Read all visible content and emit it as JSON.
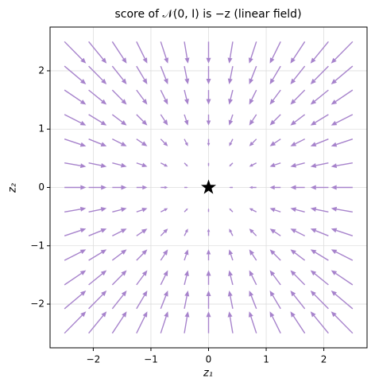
{
  "chart_data": {
    "type": "quiver",
    "title": "score of 𝒩(0, I) is −z (linear field)",
    "x_label": "z₁",
    "y_label": "z₂",
    "color": "#a783cc",
    "grid": true,
    "x": [
      -2.5,
      -2.08,
      -1.67,
      -1.25,
      -0.83,
      -0.42,
      0,
      0.42,
      0.83,
      1.25,
      1.67,
      2.08,
      2.5
    ],
    "y": [
      -2.5,
      -2.08,
      -1.67,
      -1.25,
      -0.83,
      -0.42,
      0,
      0.42,
      0.83,
      1.25,
      1.67,
      2.08,
      2.5
    ],
    "u": [
      [
        2.5,
        2.08,
        1.67,
        1.25,
        0.83,
        0.42,
        0,
        -0.42,
        -0.83,
        -1.25,
        -1.67,
        -2.08,
        -2.5
      ],
      [
        2.5,
        2.08,
        1.67,
        1.25,
        0.83,
        0.42,
        0,
        -0.42,
        -0.83,
        -1.25,
        -1.67,
        -2.08,
        -2.5
      ],
      [
        2.5,
        2.08,
        1.67,
        1.25,
        0.83,
        0.42,
        0,
        -0.42,
        -0.83,
        -1.25,
        -1.67,
        -2.08,
        -2.5
      ],
      [
        2.5,
        2.08,
        1.67,
        1.25,
        0.83,
        0.42,
        0,
        -0.42,
        -0.83,
        -1.25,
        -1.67,
        -2.08,
        -2.5
      ],
      [
        2.5,
        2.08,
        1.67,
        1.25,
        0.83,
        0.42,
        0,
        -0.42,
        -0.83,
        -1.25,
        -1.67,
        -2.08,
        -2.5
      ],
      [
        2.5,
        2.08,
        1.67,
        1.25,
        0.83,
        0.42,
        0,
        -0.42,
        -0.83,
        -1.25,
        -1.67,
        -2.08,
        -2.5
      ],
      [
        2.5,
        2.08,
        1.67,
        1.25,
        0.83,
        0.42,
        0,
        -0.42,
        -0.83,
        -1.25,
        -1.67,
        -2.08,
        -2.5
      ],
      [
        2.5,
        2.08,
        1.67,
        1.25,
        0.83,
        0.42,
        0,
        -0.42,
        -0.83,
        -1.25,
        -1.67,
        -2.08,
        -2.5
      ],
      [
        2.5,
        2.08,
        1.67,
        1.25,
        0.83,
        0.42,
        0,
        -0.42,
        -0.83,
        -1.25,
        -1.67,
        -2.08,
        -2.5
      ],
      [
        2.5,
        2.08,
        1.67,
        1.25,
        0.83,
        0.42,
        0,
        -0.42,
        -0.83,
        -1.25,
        -1.67,
        -2.08,
        -2.5
      ],
      [
        2.5,
        2.08,
        1.67,
        1.25,
        0.83,
        0.42,
        0,
        -0.42,
        -0.83,
        -1.25,
        -1.67,
        -2.08,
        -2.5
      ],
      [
        2.5,
        2.08,
        1.67,
        1.25,
        0.83,
        0.42,
        0,
        -0.42,
        -0.83,
        -1.25,
        -1.67,
        -2.08,
        -2.5
      ],
      [
        2.5,
        2.08,
        1.67,
        1.25,
        0.83,
        0.42,
        0,
        -0.42,
        -0.83,
        -1.25,
        -1.67,
        -2.08,
        -2.5
      ]
    ],
    "v": [
      [
        2.5,
        2.5,
        2.5,
        2.5,
        2.5,
        2.5,
        2.5,
        2.5,
        2.5,
        2.5,
        2.5,
        2.5,
        2.5
      ],
      [
        2.08,
        2.08,
        2.08,
        2.08,
        2.08,
        2.08,
        2.08,
        2.08,
        2.08,
        2.08,
        2.08,
        2.08,
        2.08
      ],
      [
        1.67,
        1.67,
        1.67,
        1.67,
        1.67,
        1.67,
        1.67,
        1.67,
        1.67,
        1.67,
        1.67,
        1.67,
        1.67
      ],
      [
        1.25,
        1.25,
        1.25,
        1.25,
        1.25,
        1.25,
        1.25,
        1.25,
        1.25,
        1.25,
        1.25,
        1.25,
        1.25
      ],
      [
        0.83,
        0.83,
        0.83,
        0.83,
        0.83,
        0.83,
        0.83,
        0.83,
        0.83,
        0.83,
        0.83,
        0.83,
        0.83
      ],
      [
        0.42,
        0.42,
        0.42,
        0.42,
        0.42,
        0.42,
        0.42,
        0.42,
        0.42,
        0.42,
        0.42,
        0.42,
        0.42
      ],
      [
        0,
        0,
        0,
        0,
        0,
        0,
        0,
        0,
        0,
        0,
        0,
        0,
        0
      ],
      [
        -0.42,
        -0.42,
        -0.42,
        -0.42,
        -0.42,
        -0.42,
        -0.42,
        -0.42,
        -0.42,
        -0.42,
        -0.42,
        -0.42,
        -0.42
      ],
      [
        -0.83,
        -0.83,
        -0.83,
        -0.83,
        -0.83,
        -0.83,
        -0.83,
        -0.83,
        -0.83,
        -0.83,
        -0.83,
        -0.83,
        -0.83
      ],
      [
        -1.25,
        -1.25,
        -1.25,
        -1.25,
        -1.25,
        -1.25,
        -1.25,
        -1.25,
        -1.25,
        -1.25,
        -1.25,
        -1.25,
        -1.25
      ],
      [
        -1.67,
        -1.67,
        -1.67,
        -1.67,
        -1.67,
        -1.67,
        -1.67,
        -1.67,
        -1.67,
        -1.67,
        -1.67,
        -1.67,
        -1.67
      ],
      [
        -2.08,
        -2.08,
        -2.08,
        -2.08,
        -2.08,
        -2.08,
        -2.08,
        -2.08,
        -2.08,
        -2.08,
        -2.08,
        -2.08,
        -2.08
      ],
      [
        -2.5,
        -2.5,
        -2.5,
        -2.5,
        -2.5,
        -2.5,
        -2.5,
        -2.5,
        -2.5,
        -2.5,
        -2.5,
        -2.5,
        -2.5
      ]
    ],
    "marker": {
      "x": 0,
      "y": 0
    },
    "xlim": [
      -2.75,
      2.75
    ],
    "ylim": [
      -2.75,
      2.75
    ],
    "xticks": [
      {
        "value": -2,
        "label": "−2"
      },
      {
        "value": -1,
        "label": "−1"
      },
      0,
      1,
      2
    ],
    "yticks": [
      {
        "value": -2,
        "label": "−2"
      },
      {
        "value": -1,
        "label": "−1"
      },
      0,
      1,
      2
    ]
  }
}
